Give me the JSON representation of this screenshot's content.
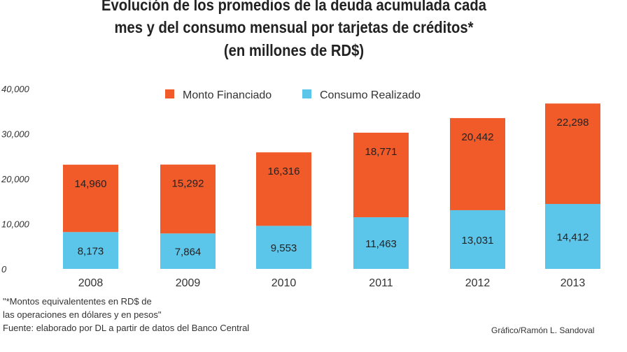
{
  "chart_data": {
    "type": "bar",
    "stacked": true,
    "title_lines": [
      "Evolución de los promedios de la deuda acumulada cada",
      "mes y del consumo mensual  por tarjetas de créditos*",
      "(en millones de RD$)"
    ],
    "categories": [
      "2008",
      "2009",
      "2010",
      "2011",
      "2012",
      "2013"
    ],
    "series": [
      {
        "name": "Consumo Realizado",
        "color": "#5cc6ea",
        "values": [
          8173,
          7864,
          9553,
          11463,
          13031,
          14412
        ],
        "labels": [
          "8,173",
          "7,864",
          "9,553",
          "11,463",
          "13,031",
          "14,412"
        ]
      },
      {
        "name": "Monto Financiado",
        "color": "#f15a29",
        "values": [
          14960,
          15292,
          16316,
          18771,
          20442,
          22298
        ],
        "labels": [
          "14,960",
          "15,292",
          "16,316",
          "18,771",
          "20,442",
          "22,298"
        ]
      }
    ],
    "legend_order": [
      "Monto Financiado",
      "Consumo Realizado"
    ],
    "legend_position": "top",
    "ylim": [
      0,
      40000
    ],
    "yticks": [
      0,
      10000,
      20000,
      30000,
      40000
    ],
    "ytick_labels": [
      "0",
      "10,000",
      "20,000",
      "30,000",
      "40,000"
    ],
    "grid": false,
    "xlabel": "",
    "ylabel": ""
  },
  "notes": {
    "footnote_line1": "\"*Montos equivalententes en RD$ de",
    "footnote_line2": " las operaciones en dólares y en pesos\"",
    "source": "Fuente: elaborado por DL a partir de datos del Banco Central",
    "credit": "Gráfico/Ramón L. Sandoval"
  }
}
